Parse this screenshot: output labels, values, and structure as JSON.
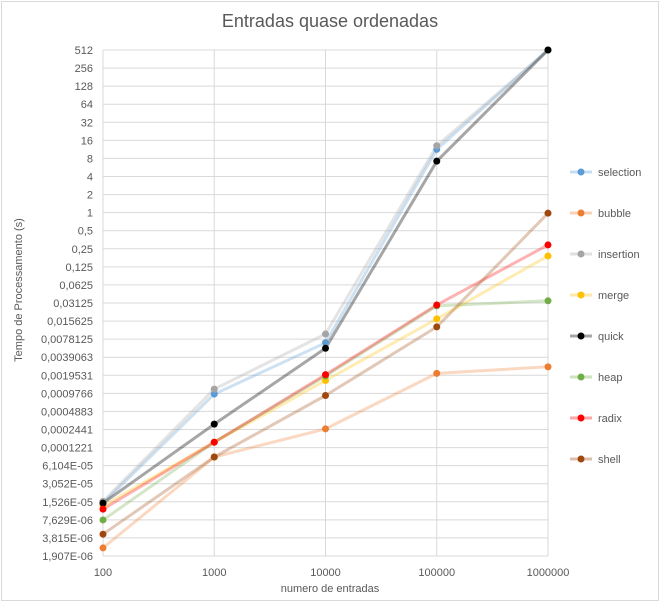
{
  "chart_data": {
    "type": "line",
    "title": "Entradas quase ordenadas",
    "xlabel": "numero de entradas",
    "ylabel": "Tempo de Processamento (s)",
    "x_scale": "category",
    "y_scale": "log2",
    "x": [
      "100",
      "1000",
      "10000",
      "100000",
      "1000000"
    ],
    "y_ticks": [
      "512",
      "256",
      "128",
      "64",
      "32",
      "16",
      "8",
      "4",
      "2",
      "1",
      "0,5",
      "0,25",
      "0,125",
      "0,0625",
      "0,03125",
      "0,015625",
      "0,0078125",
      "0,0039063",
      "0,0019531",
      "0,0009766",
      "0,0004883",
      "0,0002441",
      "0,0001221",
      "6,104E-05",
      "3,052E-05",
      "1,526E-05",
      "7,629E-06",
      "3,815E-06",
      "1,907E-06"
    ],
    "ylim": [
      1.907e-06,
      512
    ],
    "grid": true,
    "legend_position": "right",
    "series": [
      {
        "name": "selection",
        "color": "#5b9bd5",
        "values": [
          1.45e-05,
          0.00095,
          0.0068,
          11.3,
          512
        ]
      },
      {
        "name": "bubble",
        "color": "#ed7d31",
        "values": [
          2.6e-06,
          8.5e-05,
          0.00025,
          0.0021,
          0.0027
        ]
      },
      {
        "name": "insertion",
        "color": "#a5a5a5",
        "values": [
          1.55e-05,
          0.00115,
          0.0095,
          13.0,
          512
        ]
      },
      {
        "name": "merge",
        "color": "#ffc000",
        "values": [
          1.3e-05,
          0.00015,
          0.0016,
          0.017,
          0.19
        ]
      },
      {
        "name": "quick",
        "color": "#000000",
        "values": [
          1.45e-05,
          0.0003,
          0.0055,
          7.2,
          512
        ]
      },
      {
        "name": "heap",
        "color": "#70ad47",
        "values": [
          7.6e-06,
          0.00015,
          0.0019,
          0.028,
          0.034
        ]
      },
      {
        "name": "radix",
        "color": "#ff0000",
        "values": [
          1.15e-05,
          0.00015,
          0.002,
          0.029,
          0.29
        ]
      },
      {
        "name": "shell",
        "color": "#9e480e",
        "values": [
          4.4e-06,
          8.5e-05,
          0.0009,
          0.0125,
          0.98
        ]
      }
    ]
  }
}
